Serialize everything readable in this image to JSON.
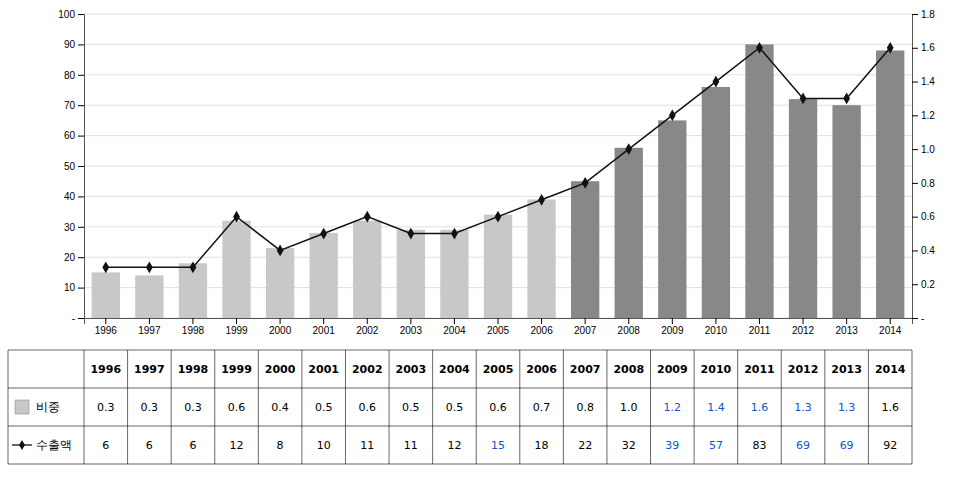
{
  "chart_data": {
    "type": "bar",
    "categories": [
      "1996",
      "1997",
      "1998",
      "1999",
      "2000",
      "2001",
      "2002",
      "2003",
      "2004",
      "2005",
      "2006",
      "2007",
      "2008",
      "2009",
      "2010",
      "2011",
      "2012",
      "2013",
      "2014"
    ],
    "series": [
      {
        "name": "비중",
        "type": "bar",
        "color": "#c8c8c8",
        "colors": [
          "#c8c8c8",
          "#c8c8c8",
          "#c8c8c8",
          "#c8c8c8",
          "#c8c8c8",
          "#c8c8c8",
          "#c8c8c8",
          "#c8c8c8",
          "#c8c8c8",
          "#c8c8c8",
          "#c8c8c8",
          "#888888",
          "#888888",
          "#888888",
          "#888888",
          "#888888",
          "#888888",
          "#888888",
          "#888888"
        ],
        "values": [
          15,
          14,
          18,
          32,
          23,
          28,
          32,
          29,
          29,
          34,
          39,
          45,
          56,
          65,
          76,
          90,
          72,
          70,
          88
        ]
      },
      {
        "name": "수출액",
        "type": "line",
        "axis": "y2",
        "color": "#111111",
        "marker": "diamond",
        "values": [
          0.3,
          0.3,
          0.3,
          0.6,
          0.4,
          0.5,
          0.6,
          0.5,
          0.5,
          0.6,
          0.7,
          0.8,
          1.0,
          1.2,
          1.4,
          1.6,
          1.3,
          1.3,
          1.6
        ]
      }
    ],
    "ylim": [
      0,
      100
    ],
    "yticks": [
      {
        "value": 0,
        "label": "-"
      },
      10,
      20,
      30,
      40,
      50,
      60,
      70,
      80,
      90,
      100
    ],
    "y2lim": [
      0,
      1.8
    ],
    "y2ticks": [
      {
        "value": 0,
        "label": "-"
      },
      0.2,
      0.4,
      0.6,
      0.8,
      {
        "value": 1.0,
        "label": "1.0"
      },
      1.2,
      1.4,
      1.6,
      1.8
    ],
    "grid": true,
    "table": {
      "rows": [
        {
          "values": [
            0.3,
            0.3,
            0.3,
            0.6,
            0.4,
            0.5,
            0.6,
            0.5,
            0.5,
            0.6,
            0.7,
            0.8,
            1.0,
            1.2,
            1.4,
            1.6,
            1.3,
            1.3,
            1.6
          ],
          "value_labels": [
            "0.3",
            "0.3",
            "0.3",
            "0.6",
            "0.4",
            "0.5",
            "0.6",
            "0.5",
            "0.5",
            "0.6",
            "0.7",
            "0.8",
            "1.0",
            "1.2",
            "1.4",
            "1.6",
            "1.3",
            "1.3",
            "1.6"
          ],
          "colors": [
            "#000000",
            "#000000",
            "#000000",
            "#000000",
            "#000000",
            "#000000",
            "#000000",
            "#000000",
            "#000000",
            "#000000",
            "#000000",
            "#000000",
            "#000000",
            "#1155cc",
            "#1155cc",
            "#1155cc",
            "#1155cc",
            "#1155cc",
            "#000000"
          ]
        },
        {
          "values": [
            6,
            6,
            6,
            12,
            8,
            10,
            11,
            11,
            12,
            15,
            18,
            22,
            32,
            39,
            57,
            83,
            69,
            69,
            92
          ],
          "colors": [
            "#000000",
            "#000000",
            "#000000",
            "#000000",
            "#000000",
            "#000000",
            "#000000",
            "#000000",
            "#000000",
            "#1155cc",
            "#000000",
            "#000000",
            "#000000",
            "#1155cc",
            "#1155cc",
            "#000000",
            "#1155cc",
            "#1155cc",
            "#000000"
          ]
        }
      ]
    }
  }
}
